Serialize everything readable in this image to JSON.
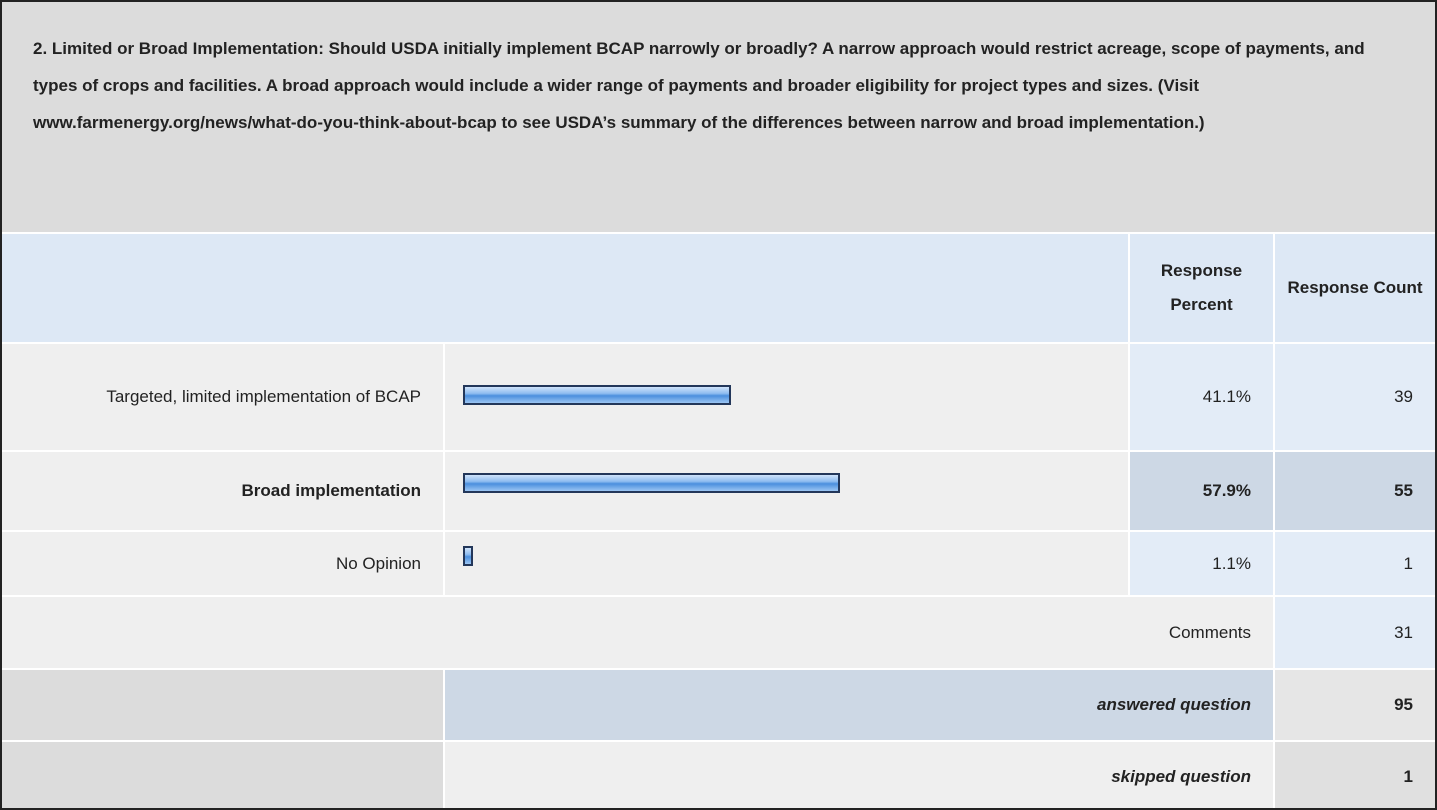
{
  "question": "2. Limited or Broad Implementation: Should USDA initially implement BCAP narrowly or broadly? A narrow approach would restrict acreage, scope of payments, and types of crops and facilities. A broad approach would include a wider range of payments and broader eligibility for project types and sizes. (Visit www.farmenergy.org/news/what-do-you-think-about-bcap to see USDA’s summary of the differences between narrow and broad implementation.)",
  "header": {
    "percent": "Response Percent",
    "count": "Response Count"
  },
  "rows": [
    {
      "label": "Targeted, limited implementation of BCAP",
      "percent": 41.1,
      "percent_label": "41.1%",
      "count": 39
    },
    {
      "label": "Broad implementation",
      "percent": 57.9,
      "percent_label": "57.9%",
      "count": 55
    },
    {
      "label": "No Opinion",
      "percent": 1.1,
      "percent_label": "1.1%",
      "count": 1
    }
  ],
  "comments": {
    "label": "Comments",
    "count": 31
  },
  "answered": {
    "label": "answered question",
    "count": 95
  },
  "skipped": {
    "label": "skipped question",
    "count": 1
  }
}
